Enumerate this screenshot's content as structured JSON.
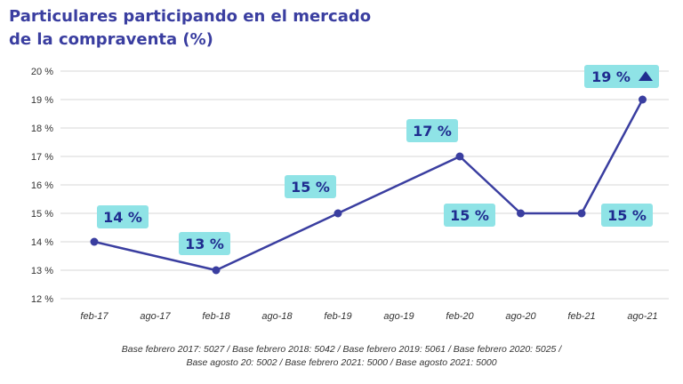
{
  "title_lines": [
    "Particulares participando en el mercado",
    "de la compraventa (%)"
  ],
  "footnote_lines": [
    "Base febrero 2017: 5027 / Base febrero 2018: 5042 / Base febrero 2019: 5061 / Base febrero 2020: 5025 /",
    "Base agosto 20: 5002 / Base febrero 2021: 5000 / Base agosto 2021: 5000"
  ],
  "colors": {
    "title": "#3a3ea0",
    "line": "#3a3ea0",
    "label_bg": "#8fe3e6",
    "label_text": "#1f2c8f",
    "grid": "#d7d7d7",
    "tick_text": "#333333"
  },
  "chart_data": {
    "type": "line",
    "title": "Particulares participando en el mercado de la compraventa (%)",
    "categories": [
      "feb-17",
      "ago-17",
      "feb-18",
      "ago-18",
      "feb-19",
      "ago-19",
      "feb-20",
      "ago-20",
      "feb-21",
      "ago-21"
    ],
    "y_ticks": [
      "12 %",
      "13 %",
      "14 %",
      "15 %",
      "16 %",
      "17 %",
      "18 %",
      "19 %",
      "20 %"
    ],
    "ylim": [
      12,
      20
    ],
    "grid": true,
    "series": [
      {
        "points": [
          {
            "x": "feb-17",
            "y": 14,
            "label": "14 %"
          },
          {
            "x": "feb-18",
            "y": 13,
            "label": "13 %"
          },
          {
            "x": "feb-19",
            "y": 15,
            "label": "15 %"
          },
          {
            "x": "feb-20",
            "y": 17,
            "label": "17 %"
          },
          {
            "x": "ago-20",
            "y": 15,
            "label": "15 %"
          },
          {
            "x": "feb-21",
            "y": 15,
            "label": "15 %"
          },
          {
            "x": "ago-21",
            "y": 19,
            "label": "19 %",
            "marker": "up-triangle"
          }
        ]
      }
    ]
  }
}
